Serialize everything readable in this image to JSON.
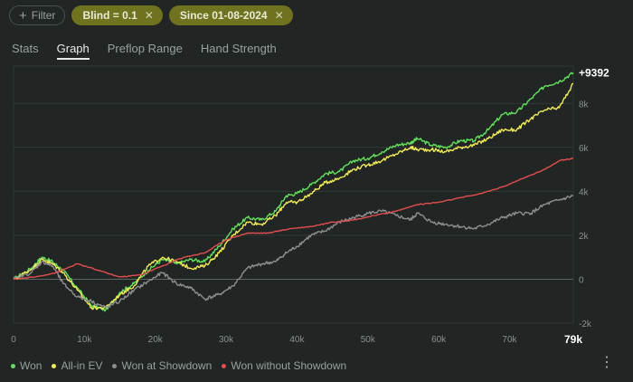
{
  "filters": {
    "add_label": "Filter",
    "chips": [
      "Blind = 0.1",
      "Since 01-08-2024"
    ]
  },
  "tabs": [
    "Stats",
    "Graph",
    "Preflop Range",
    "Hand Strength"
  ],
  "active_tab": "Graph",
  "legend": [
    {
      "name": "Won",
      "color": "#63e05d"
    },
    {
      "name": "All-in EV",
      "color": "#f2ea57"
    },
    {
      "name": "Won at Showdown",
      "color": "#8e8e8e"
    },
    {
      "name": "Won without Showdown",
      "color": "#e34d4d"
    }
  ],
  "chart_data": {
    "type": "line",
    "x_ticks": [
      "0",
      "10k",
      "20k",
      "30k",
      "40k",
      "50k",
      "60k",
      "70k"
    ],
    "x_end_label": "79k",
    "y_ticks": [
      "-2k",
      "0",
      "2k",
      "4k",
      "6k",
      "8k"
    ],
    "xlim": [
      0,
      79000
    ],
    "ylim": [
      -2000,
      9700
    ],
    "end_value_label": "+9392",
    "series": [
      {
        "name": "Won",
        "color": "#63e05d",
        "points": [
          [
            0,
            0
          ],
          [
            2500,
            500
          ],
          [
            4000,
            1000
          ],
          [
            5500,
            800
          ],
          [
            7000,
            400
          ],
          [
            9000,
            -400
          ],
          [
            11000,
            -1200
          ],
          [
            13000,
            -1400
          ],
          [
            15000,
            -600
          ],
          [
            17000,
            -200
          ],
          [
            19000,
            400
          ],
          [
            21000,
            900
          ],
          [
            23000,
            700
          ],
          [
            25000,
            900
          ],
          [
            27000,
            800
          ],
          [
            29000,
            1500
          ],
          [
            31000,
            2300
          ],
          [
            33000,
            2800
          ],
          [
            35000,
            2700
          ],
          [
            37000,
            3100
          ],
          [
            38500,
            3800
          ],
          [
            40000,
            3900
          ],
          [
            42000,
            4300
          ],
          [
            44000,
            4800
          ],
          [
            46000,
            4900
          ],
          [
            48000,
            5400
          ],
          [
            50000,
            5500
          ],
          [
            52000,
            5800
          ],
          [
            54000,
            6100
          ],
          [
            56000,
            6200
          ],
          [
            57000,
            6400
          ],
          [
            59000,
            6100
          ],
          [
            61000,
            6000
          ],
          [
            63000,
            6300
          ],
          [
            65000,
            6300
          ],
          [
            67000,
            6800
          ],
          [
            69000,
            7500
          ],
          [
            71000,
            7600
          ],
          [
            73000,
            8200
          ],
          [
            75000,
            8800
          ],
          [
            77000,
            9000
          ],
          [
            79000,
            9392
          ]
        ]
      },
      {
        "name": "All-in EV",
        "color": "#f2ea57",
        "points": [
          [
            0,
            0
          ],
          [
            2500,
            450
          ],
          [
            4000,
            900
          ],
          [
            5500,
            700
          ],
          [
            7000,
            300
          ],
          [
            9000,
            -500
          ],
          [
            11000,
            -1300
          ],
          [
            13000,
            -1300
          ],
          [
            15000,
            -700
          ],
          [
            17000,
            -300
          ],
          [
            19000,
            600
          ],
          [
            21000,
            1000
          ],
          [
            23000,
            800
          ],
          [
            25000,
            500
          ],
          [
            27000,
            600
          ],
          [
            29000,
            1200
          ],
          [
            31000,
            2000
          ],
          [
            33000,
            2600
          ],
          [
            35000,
            2500
          ],
          [
            37000,
            2900
          ],
          [
            38500,
            3500
          ],
          [
            40000,
            3500
          ],
          [
            42000,
            3900
          ],
          [
            44000,
            4400
          ],
          [
            46000,
            4600
          ],
          [
            48000,
            5000
          ],
          [
            50000,
            5200
          ],
          [
            52000,
            5400
          ],
          [
            54000,
            5700
          ],
          [
            56000,
            6000
          ],
          [
            57000,
            5900
          ],
          [
            59000,
            5900
          ],
          [
            61000,
            5800
          ],
          [
            63000,
            6000
          ],
          [
            65000,
            6100
          ],
          [
            67000,
            6400
          ],
          [
            69000,
            6800
          ],
          [
            71000,
            6800
          ],
          [
            73000,
            7300
          ],
          [
            75000,
            7700
          ],
          [
            77000,
            7800
          ],
          [
            79000,
            8900
          ]
        ]
      },
      {
        "name": "Won at Showdown",
        "color": "#8e8e8e",
        "points": [
          [
            0,
            0
          ],
          [
            2500,
            300
          ],
          [
            4000,
            800
          ],
          [
            5500,
            600
          ],
          [
            7000,
            -200
          ],
          [
            9000,
            -800
          ],
          [
            11000,
            -1000
          ],
          [
            13000,
            -1300
          ],
          [
            15000,
            -1000
          ],
          [
            17000,
            -500
          ],
          [
            19000,
            -100
          ],
          [
            21000,
            300
          ],
          [
            23000,
            -200
          ],
          [
            25000,
            -400
          ],
          [
            27000,
            -900
          ],
          [
            29000,
            -700
          ],
          [
            31000,
            -300
          ],
          [
            33000,
            500
          ],
          [
            35000,
            700
          ],
          [
            37000,
            800
          ],
          [
            38500,
            1200
          ],
          [
            40000,
            1500
          ],
          [
            42000,
            2000
          ],
          [
            44000,
            2200
          ],
          [
            46000,
            2600
          ],
          [
            48000,
            2800
          ],
          [
            50000,
            3000
          ],
          [
            52000,
            3100
          ],
          [
            54000,
            2900
          ],
          [
            56000,
            2700
          ],
          [
            57000,
            3000
          ],
          [
            59000,
            2600
          ],
          [
            61000,
            2500
          ],
          [
            63000,
            2400
          ],
          [
            65000,
            2300
          ],
          [
            67000,
            2500
          ],
          [
            69000,
            2800
          ],
          [
            71000,
            3000
          ],
          [
            73000,
            3000
          ],
          [
            75000,
            3400
          ],
          [
            77000,
            3600
          ],
          [
            79000,
            3800
          ]
        ]
      },
      {
        "name": "Won without Showdown",
        "color": "#e34d4d",
        "points": [
          [
            0,
            0
          ],
          [
            3000,
            100
          ],
          [
            6000,
            300
          ],
          [
            9000,
            700
          ],
          [
            12000,
            400
          ],
          [
            15000,
            100
          ],
          [
            18000,
            200
          ],
          [
            21000,
            600
          ],
          [
            24000,
            1000
          ],
          [
            27000,
            1200
          ],
          [
            30000,
            1800
          ],
          [
            33000,
            2100
          ],
          [
            36000,
            2100
          ],
          [
            39000,
            2300
          ],
          [
            42000,
            2400
          ],
          [
            45000,
            2600
          ],
          [
            48000,
            2700
          ],
          [
            51000,
            2900
          ],
          [
            54000,
            3100
          ],
          [
            57000,
            3400
          ],
          [
            60000,
            3500
          ],
          [
            63000,
            3700
          ],
          [
            66000,
            3900
          ],
          [
            69000,
            4200
          ],
          [
            72000,
            4600
          ],
          [
            75000,
            5000
          ],
          [
            77000,
            5400
          ],
          [
            79000,
            5500
          ]
        ]
      }
    ]
  }
}
